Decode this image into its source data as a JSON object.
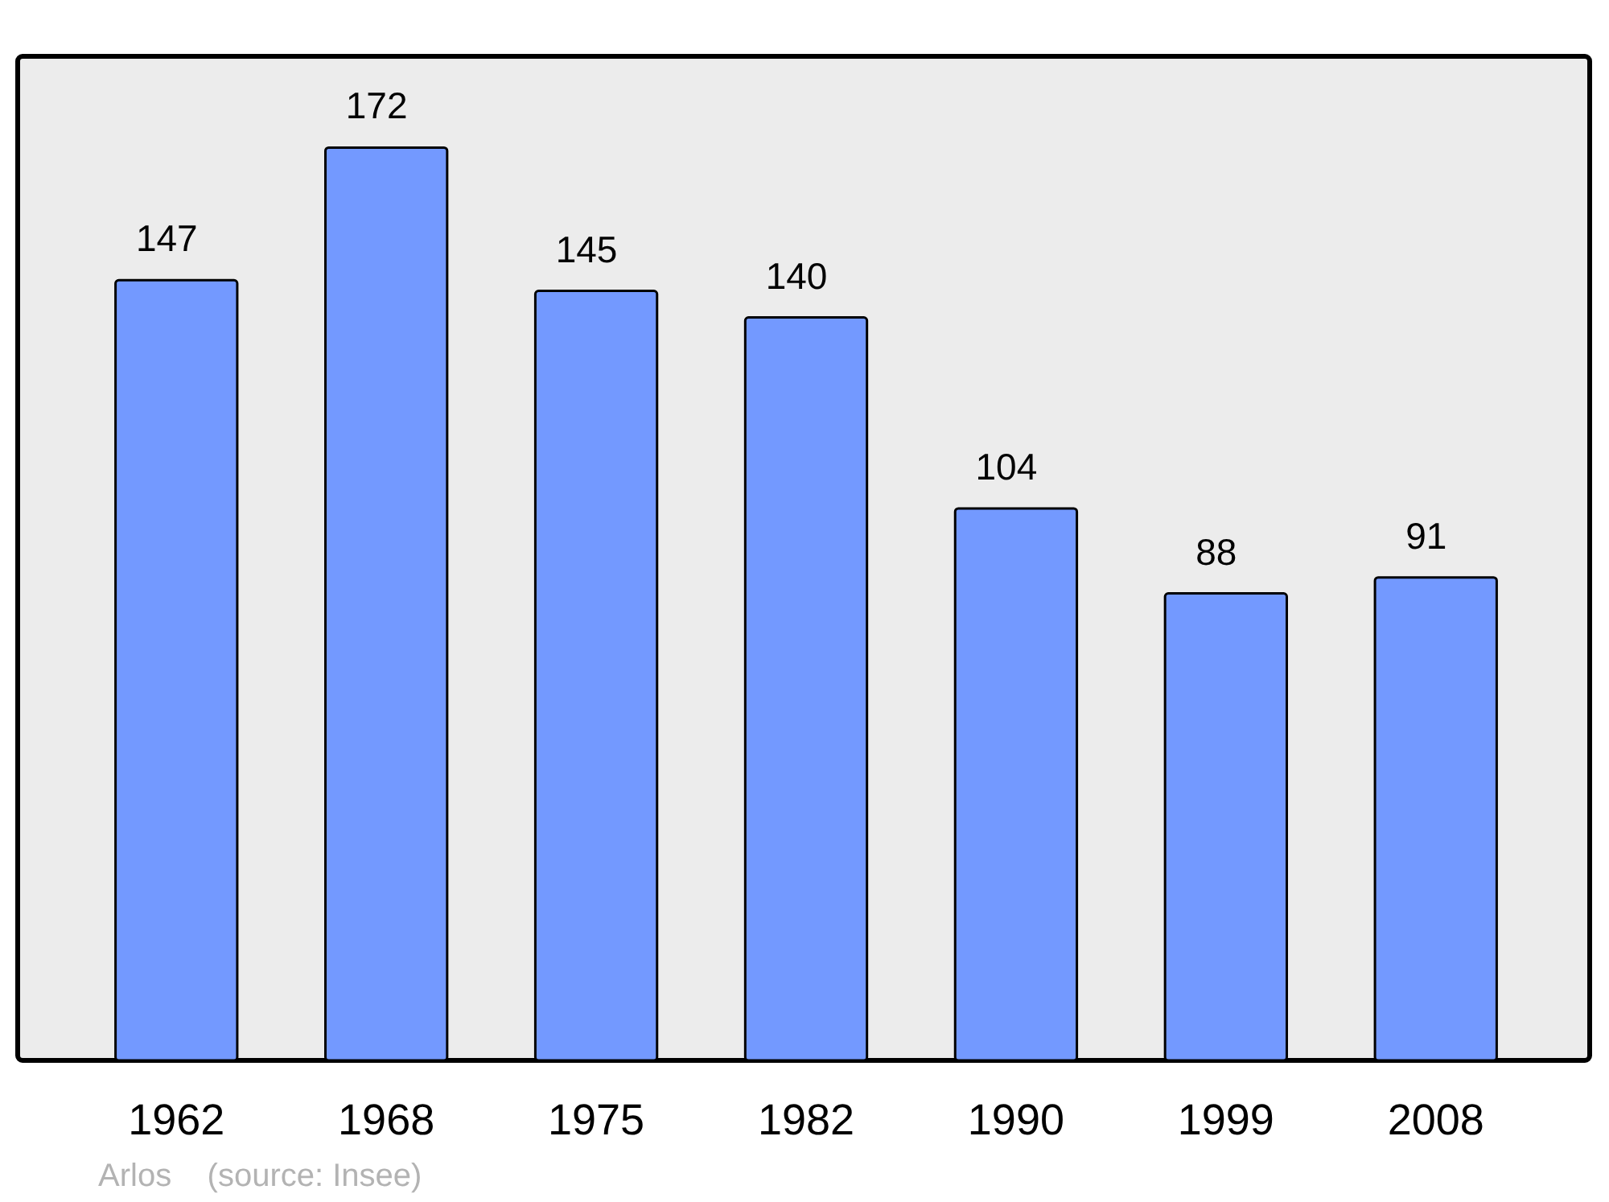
{
  "chart_data": {
    "type": "bar",
    "categories": [
      "1962",
      "1968",
      "1975",
      "1982",
      "1990",
      "1999",
      "2008"
    ],
    "values": [
      147,
      172,
      145,
      140,
      104,
      88,
      91
    ],
    "color": "#7399ff",
    "data_labels": true,
    "annotations": [
      "Arlos    (source: Insee)"
    ]
  }
}
